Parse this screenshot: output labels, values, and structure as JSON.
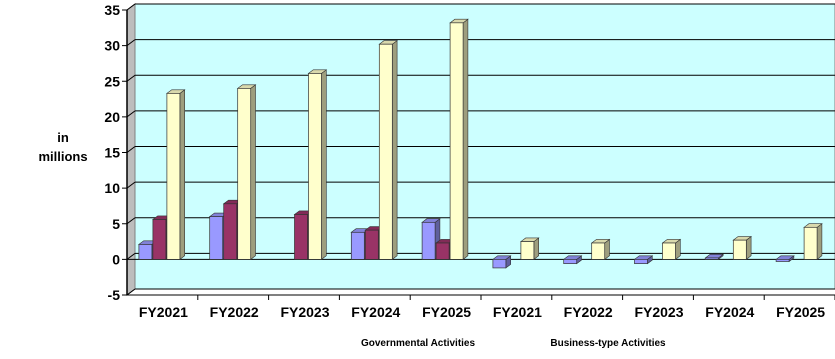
{
  "chart_data": {
    "type": "bar",
    "ylabel_line1": "in",
    "ylabel_line2": "millions",
    "ylim": [
      -5,
      35
    ],
    "yticks": [
      -5,
      0,
      5,
      10,
      15,
      20,
      25,
      30,
      35
    ],
    "grid": true,
    "categories": [
      "FY2021",
      "FY2022",
      "FY2023",
      "FY2024",
      "FY2025",
      "FY2021",
      "FY2022",
      "FY2023",
      "FY2024",
      "FY2025"
    ],
    "groups": [
      {
        "label": "Governmental  Activities",
        "categories": [
          "FY2021",
          "FY2022",
          "FY2023",
          "FY2024",
          "FY2025"
        ]
      },
      {
        "label": "Business-type Activities",
        "categories": [
          "FY2021",
          "FY2022",
          "FY2023",
          "FY2024",
          "FY2025"
        ]
      }
    ],
    "series": [
      {
        "color": "#9999ff",
        "values": [
          2.1,
          6.0,
          0.0,
          3.8,
          5.2,
          -1.2,
          -0.6,
          -0.6,
          0.2,
          -0.3
        ]
      },
      {
        "color": "#993366",
        "values": [
          5.6,
          7.8,
          6.3,
          4.1,
          2.3,
          0.0,
          0.0,
          0.0,
          0.0,
          0.0
        ]
      },
      {
        "color": "#ffffcc",
        "values": [
          23.3,
          24.0,
          26.1,
          30.2,
          33.2,
          2.5,
          2.3,
          2.3,
          2.7,
          4.5
        ]
      }
    ],
    "colors": {
      "plot_background": "#ccffff",
      "wall_shade": "#bdbdbd"
    }
  }
}
